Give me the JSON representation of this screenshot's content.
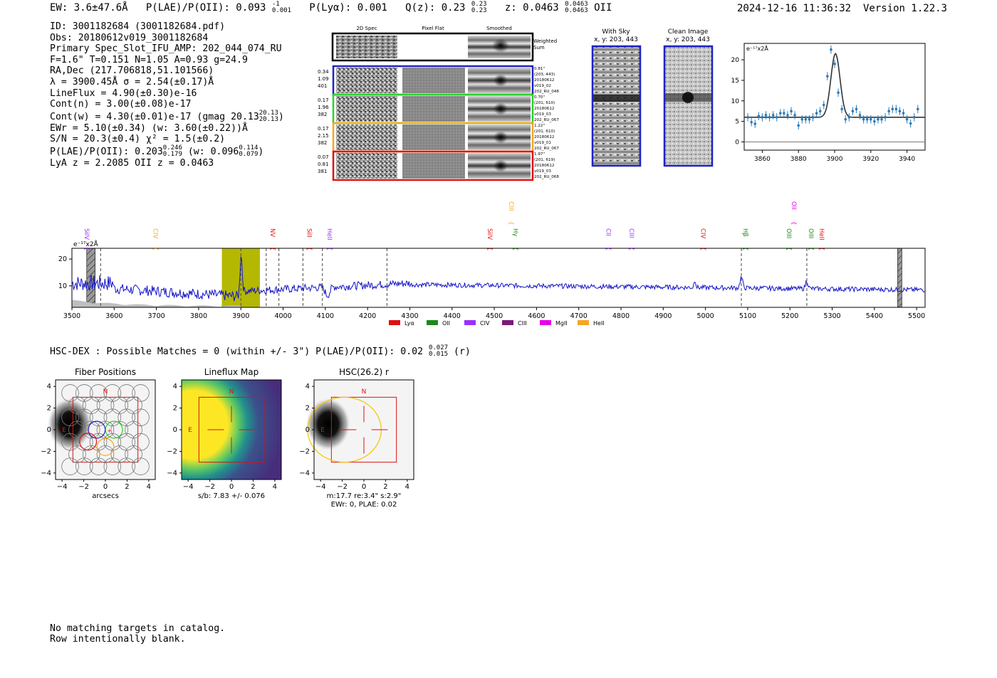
{
  "header": {
    "ew": "EW: 3.6±47.6Å",
    "plae_label": "P(LAE)/P(OII): 0.093",
    "plae_hi": "-1",
    "plae_lo": "0.001",
    "plya": "P(Lyα): 0.001",
    "qz_label": "Q(z): 0.23",
    "qz_hi": "0.23",
    "qz_lo": "0.23",
    "z_label": "z: 0.0463",
    "z_hi": "0.0463",
    "z_lo": "0.0463",
    "z_line": "OII",
    "timestamp": "2024-12-16 11:36:32",
    "version": "Version 1.22.3"
  },
  "info": {
    "id": "ID: 3001182684 (3001182684.pdf)",
    "obs": "Obs: 20180612v019_3001182684",
    "primary": "Primary Spec_Slot_IFU_AMP: 202_044_074_RU",
    "params": "F=1.6\"  T=0.151  N=1.05  A=0.93  g=24.9",
    "radec": "RA,Dec (217.706818,51.101566)",
    "lambda": "λ = 3900.45Å  σ = 2.54(±0.17)Å",
    "lineflux": "LineFlux = 4.90(±0.30)e-16",
    "contn": "Cont(n) = 3.00(±0.08)e-17",
    "contw": "Cont(w) = 4.30(±0.01)e-17 (gmag 20.13",
    "contw_hi": "20.13",
    "contw_lo": "20.13",
    "ewr": "EWr = 5.10(±0.34)  (w: 3.60(±0.22))Å",
    "sn": "S/N = 20.3(±0.4)  χ² = 1.5(±0.2)",
    "plae_a": "P(LAE)/P(OII): 0.203",
    "plae_a_hi": "0.246",
    "plae_a_lo": "0.179",
    "plae_b": "(w: 0.096",
    "plae_b_hi": "0.114",
    "plae_b_lo": "0.079",
    "lya": "LyA z = 2.2085  OII z = 0.0463"
  },
  "cutouts": {
    "col_2d": "2D Spec",
    "col_flat": "Pixel Flat",
    "col_smooth": "Smoothed",
    "weighted": "Weighted",
    "weighted2": "Sum",
    "rows": [
      {
        "left": [
          "0.34",
          "1.09",
          "401"
        ],
        "right": [
          "0.81\"",
          "(203, 443)",
          "20180612",
          "v019_02",
          "202_RU_048"
        ],
        "color": "#1f22c4"
      },
      {
        "left": [
          "0.17",
          "1.96",
          "382"
        ],
        "right": [
          "0.70\"",
          "(201, 610)",
          "20180612",
          "v019_03",
          "202_RU_067"
        ],
        "color": "#2ad12a"
      },
      {
        "left": [
          "0.17",
          "2.15",
          "382"
        ],
        "right": [
          "1.22\"",
          "(201, 610)",
          "20180612",
          "v019_01",
          "202_RU_067"
        ],
        "color": "#f5a623"
      },
      {
        "left": [
          "0.07",
          "0.81",
          "381"
        ],
        "right": [
          "1.97\"",
          "(201, 619)",
          "20180612",
          "v019_03",
          "202_RU_068"
        ],
        "color": "#e01010"
      }
    ]
  },
  "skyimg": {
    "with_sky": "With Sky",
    "with_sky_xy": "x, y: 203, 443",
    "clean": "Clean Image",
    "clean_xy": "x, y: 203, 443"
  },
  "chart_data": [
    {
      "type": "scatter",
      "title": "",
      "ylabel_note": "e⁻¹⁷x2Å",
      "xlim": [
        3850,
        3950
      ],
      "ylim": [
        -2,
        24
      ],
      "xticks": [
        3860,
        3880,
        3900,
        3920,
        3940
      ],
      "yticks": [
        0,
        5,
        10,
        15,
        20
      ],
      "x": [
        3852,
        3854,
        3856,
        3858,
        3860,
        3862,
        3864,
        3866,
        3868,
        3870,
        3872,
        3874,
        3876,
        3878,
        3880,
        3882,
        3884,
        3886,
        3888,
        3890,
        3892,
        3894,
        3896,
        3898,
        3900,
        3902,
        3904,
        3906,
        3908,
        3910,
        3912,
        3914,
        3916,
        3918,
        3920,
        3922,
        3924,
        3926,
        3928,
        3930,
        3932,
        3934,
        3936,
        3938,
        3940,
        3942,
        3944,
        3946
      ],
      "y": [
        6.0,
        4.8,
        4.4,
        6.3,
        6.0,
        6.5,
        6.0,
        6.5,
        6.0,
        7.0,
        7.0,
        6.5,
        7.5,
        6.5,
        4.0,
        5.5,
        5.5,
        5.5,
        6.0,
        7.0,
        7.5,
        9.0,
        16.0,
        22.5,
        19.0,
        12.0,
        8.0,
        5.5,
        6.0,
        7.5,
        8.0,
        6.5,
        5.5,
        5.5,
        5.5,
        5.0,
        5.5,
        5.5,
        6.0,
        7.5,
        8.0,
        8.0,
        7.5,
        7.0,
        5.5,
        4.5,
        6.0,
        8.0
      ],
      "fit": {
        "center": 3900.45,
        "sigma": 2.54,
        "continuum": 6.0,
        "peak": 21.5
      }
    },
    {
      "type": "line",
      "title": "",
      "ylabel_note": "e⁻¹⁷x2Å",
      "xlim": [
        3500,
        5520
      ],
      "ylim": [
        2,
        24
      ],
      "xticks": [
        3500,
        3600,
        3700,
        3800,
        3900,
        4000,
        4100,
        4200,
        4300,
        4400,
        4500,
        4600,
        4700,
        4800,
        4900,
        5000,
        5100,
        5200,
        5300,
        5400,
        5500
      ],
      "yticks": [
        10,
        20
      ],
      "highlight": [
        3855,
        3945
      ],
      "hatched": [
        [
          3535,
          3555
        ],
        [
          5455,
          5465
        ]
      ],
      "vlines": [
        3900,
        3568,
        3960,
        3990,
        4047,
        4093,
        4246,
        5085,
        5240
      ],
      "emission_lines": [
        {
          "name": "SiIV",
          "x": 3525,
          "row": 1,
          "color": "#9b30ff"
        },
        {
          "name": "CIV",
          "x": 3688,
          "row": 1,
          "color": "#f5a623"
        },
        {
          "name": "NV",
          "x": 3965,
          "row": 1,
          "color": "#e01010"
        },
        {
          "name": "SiII",
          "x": 4052,
          "row": 1,
          "color": "#e01010"
        },
        {
          "name": "HeII",
          "x": 4100,
          "row": 1,
          "color": "#9b30ff"
        },
        {
          "name": "SiIV",
          "x": 4480,
          "row": 1,
          "color": "#e01010"
        },
        {
          "name": "CIII",
          "x": 4530,
          "row": 0,
          "color": "#f5a623"
        },
        {
          "name": "Hγ",
          "x": 4540,
          "row": 1,
          "color": "#1a8a1a"
        },
        {
          "name": "CII",
          "x": 4760,
          "row": 1,
          "color": "#9b30ff"
        },
        {
          "name": "CIII",
          "x": 4815,
          "row": 1,
          "color": "#9b30ff"
        },
        {
          "name": "CIV",
          "x": 4985,
          "row": 1,
          "color": "#e01010"
        },
        {
          "name": "Hβ",
          "x": 5085,
          "row": 1,
          "color": "#1a8a1a"
        },
        {
          "name": "OII",
          "x": 5200,
          "row": 0,
          "color": "#e600e6"
        },
        {
          "name": "OIII",
          "x": 5188,
          "row": 1,
          "color": "#1a8a1a"
        },
        {
          "name": "OIII",
          "x": 5240,
          "row": 1,
          "color": "#1a8a1a"
        },
        {
          "name": "HeII",
          "x": 5265,
          "row": 1,
          "color": "#e01010"
        }
      ],
      "legend": [
        {
          "name": "Lyα",
          "color": "#e01010"
        },
        {
          "name": "OII",
          "color": "#1a8a1a"
        },
        {
          "name": "CIV",
          "color": "#9b30ff"
        },
        {
          "name": "CIII",
          "color": "#7a1a7a"
        },
        {
          "name": "MgII",
          "color": "#e600e6"
        },
        {
          "name": "HeII",
          "color": "#f5a623"
        }
      ]
    }
  ],
  "hsc": {
    "summary": "HSC-DEX : Possible Matches = 0 (within +/- 3\")  P(LAE)/P(OII): 0.02",
    "hi": "0.027",
    "lo": "0.015",
    "band": "(r)"
  },
  "maps": [
    {
      "title": "Fiber Positions",
      "xlabel": "arcsecs",
      "xlabel2": ""
    },
    {
      "title": "Lineflux Map",
      "xlabel": "s/b: 7.83 +/- 0.076",
      "xlabel2": ""
    },
    {
      "title": "HSC(26.2) r",
      "xlabel": "m:17.7  re:3.4\"  s:2.9\"",
      "xlabel2": "EWr: 0, PLAE: 0.02"
    }
  ],
  "map_ticks": {
    "x": [
      "−4",
      "−2",
      "0",
      "2",
      "4"
    ],
    "y": [
      "4",
      "2",
      "0",
      "−2",
      "−4"
    ],
    "north": "N",
    "east": "E"
  },
  "notes": {
    "line1": "No matching targets in catalog.",
    "line2": "Row intentionally blank."
  }
}
